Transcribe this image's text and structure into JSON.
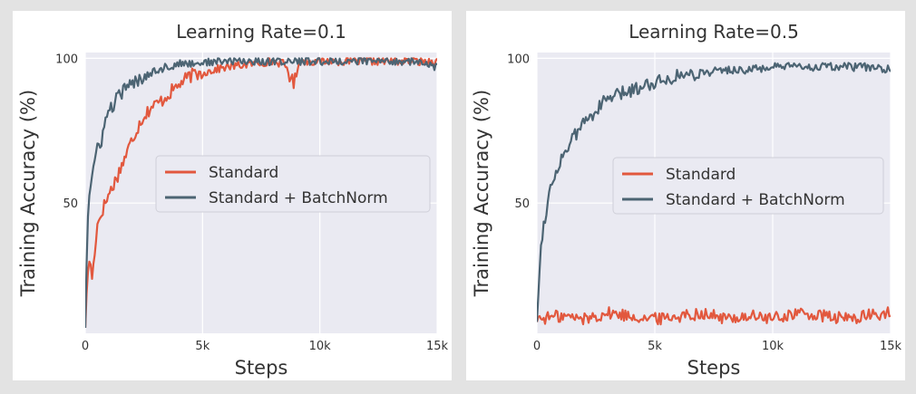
{
  "colors": {
    "standard": "#e2583e",
    "batchnorm": "#4c6473",
    "plot_bg": "#eaeaf2",
    "grid": "#ffffff"
  },
  "chart_data": [
    {
      "type": "line",
      "title": "Learning Rate=0.1",
      "xlabel": "Steps",
      "ylabel": "Training Accuracy (%)",
      "xlim": [
        0,
        15000
      ],
      "ylim": [
        5,
        102
      ],
      "x_ticks": [
        0,
        5000,
        10000,
        15000
      ],
      "x_tick_labels": [
        "0",
        "5k",
        "10k",
        "15k"
      ],
      "y_ticks": [
        50,
        100
      ],
      "y_tick_labels": [
        "50",
        "100"
      ],
      "grid": true,
      "legend_position": "center-right",
      "series": [
        {
          "name": "Standard",
          "color_key": "standard",
          "x": [
            0,
            150,
            300,
            500,
            700,
            1000,
            1300,
            1600,
            2000,
            2400,
            2800,
            3200,
            3600,
            4000,
            4500,
            5000,
            5500,
            6000,
            7000,
            8000,
            8500,
            8900,
            9100,
            10000,
            11000,
            12000,
            13000,
            14000,
            15000
          ],
          "y": [
            8,
            32,
            24,
            42,
            47,
            53,
            58,
            64,
            72,
            79,
            83,
            85,
            88,
            91,
            94,
            95,
            96,
            97,
            98,
            99,
            98,
            91,
            99,
            99,
            99,
            99,
            99,
            99,
            99
          ]
        },
        {
          "name": "Standard + BatchNorm",
          "color_key": "batchnorm",
          "x": [
            0,
            100,
            200,
            350,
            500,
            700,
            900,
            1200,
            1500,
            2000,
            2500,
            3000,
            3500,
            4000,
            5000,
            6000,
            7000,
            8000,
            9000,
            10000,
            11000,
            12000,
            13000,
            14000,
            15000
          ],
          "y": [
            8,
            45,
            55,
            62,
            68,
            72,
            80,
            84,
            88,
            91,
            94,
            96,
            97,
            98,
            98.5,
            99,
            99,
            99,
            99,
            99,
            99,
            99,
            99,
            99,
            97
          ]
        }
      ]
    },
    {
      "type": "line",
      "title": "Learning Rate=0.5",
      "xlabel": "Steps",
      "ylabel": "Training Accuracy (%)",
      "xlim": [
        0,
        15000
      ],
      "ylim": [
        5,
        102
      ],
      "x_ticks": [
        0,
        5000,
        10000,
        15000
      ],
      "x_tick_labels": [
        "0",
        "5k",
        "10k",
        "15k"
      ],
      "y_ticks": [
        50,
        100
      ],
      "y_tick_labels": [
        "50",
        "100"
      ],
      "grid": true,
      "legend_position": "center-right",
      "series": [
        {
          "name": "Standard",
          "color_key": "standard",
          "x": [
            0,
            1000,
            2000,
            3000,
            4000,
            5000,
            6000,
            7000,
            8000,
            9000,
            10000,
            11000,
            12000,
            13000,
            14000,
            15000
          ],
          "y": [
            10,
            11,
            10,
            12,
            11,
            10,
            11,
            12,
            10,
            11,
            10,
            12,
            11,
            10,
            11,
            12
          ]
        },
        {
          "name": "Standard + BatchNorm",
          "color_key": "batchnorm",
          "x": [
            0,
            100,
            200,
            400,
            600,
            900,
            1200,
            1600,
            2000,
            2500,
            3000,
            4000,
            5000,
            6000,
            7000,
            8000,
            9000,
            10000,
            11000,
            12000,
            13000,
            14000,
            15000
          ],
          "y": [
            10,
            25,
            38,
            48,
            56,
            63,
            68,
            73,
            78,
            82,
            86,
            89,
            92,
            94,
            95,
            96,
            96,
            97,
            97,
            97,
            97,
            97,
            96
          ]
        }
      ]
    }
  ]
}
